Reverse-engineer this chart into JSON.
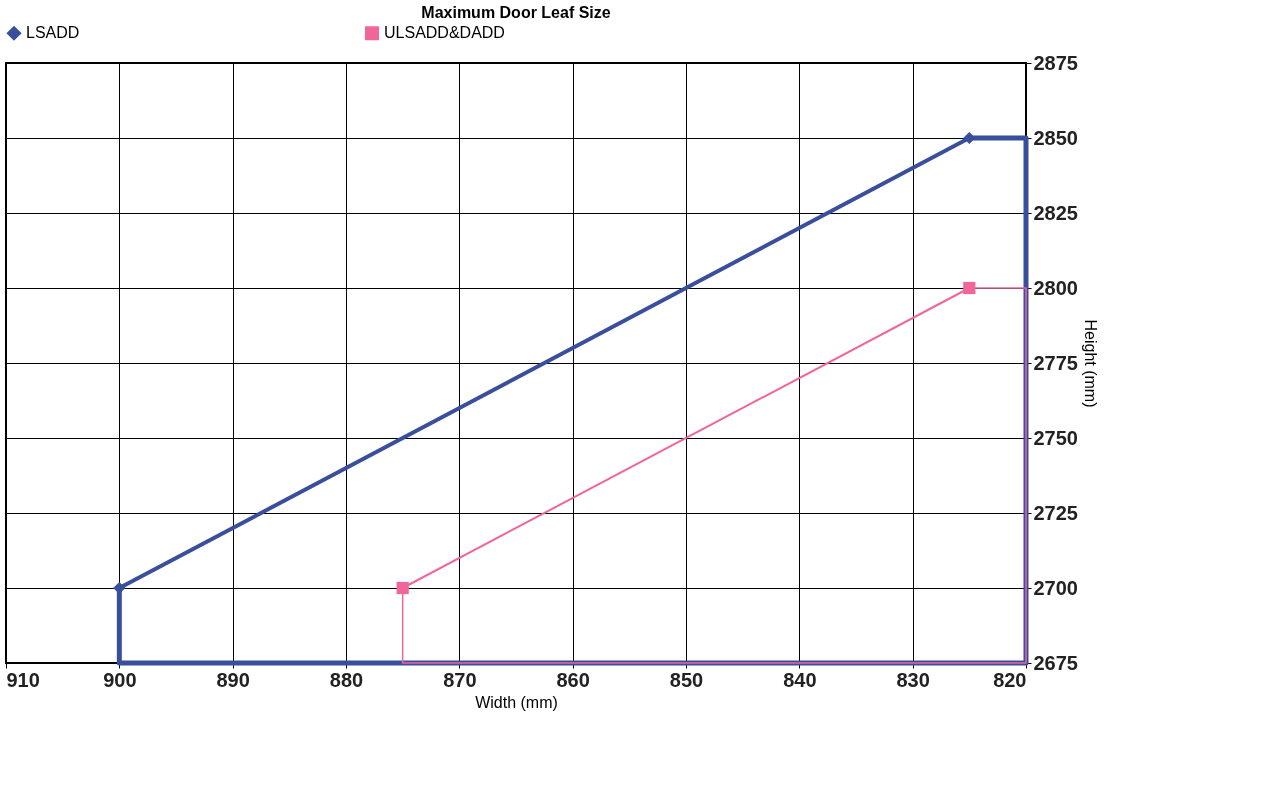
{
  "chart_data": {
    "type": "line",
    "title": "Maximum Door Leaf Size",
    "xlabel": "Width (mm)",
    "ylabel": "Height (mm)",
    "xlim": [
      910,
      820
    ],
    "xticks": [
      910,
      900,
      890,
      880,
      870,
      860,
      850,
      840,
      830,
      820
    ],
    "ylim": [
      2675,
      2875
    ],
    "yticks": [
      2675,
      2700,
      2725,
      2750,
      2775,
      2800,
      2825,
      2850,
      2875
    ],
    "grid": true,
    "legend": "top",
    "series": [
      {
        "name": "LSADD",
        "color": "#3a4f9c",
        "marker": "diamond",
        "x": [
          900,
          825
        ],
        "values": [
          2700,
          2850
        ]
      },
      {
        "name": "ULSADD&DADD",
        "color": "#f0669a",
        "marker": "square",
        "x": [
          875,
          825
        ],
        "values": [
          2700,
          2800
        ]
      },
      {
        "color": "#3a4f9c",
        "marker": "none",
        "x": [
          825,
          820,
          820,
          900,
          900
        ],
        "values": [
          2850,
          2850,
          2675,
          2675,
          2700
        ]
      },
      {
        "color": "#f0669a",
        "marker": "none",
        "x": [
          825,
          820,
          820,
          875,
          875
        ],
        "values": [
          2800,
          2800,
          2675,
          2675,
          2700
        ]
      }
    ]
  }
}
